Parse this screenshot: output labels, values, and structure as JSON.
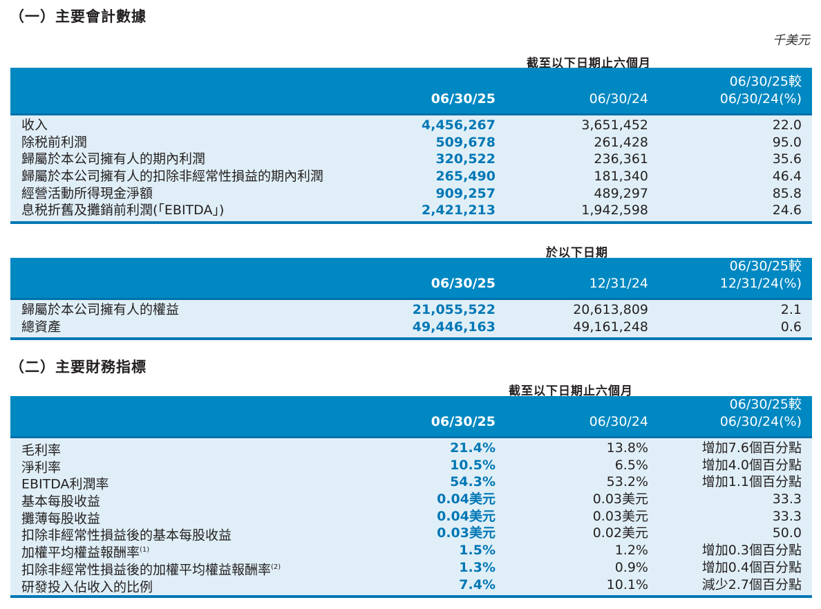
{
  "section1": {
    "title": "（一）主要會計數據",
    "unit": "千美元"
  },
  "table1": {
    "caption": "截至以下日期止六個月",
    "headers": [
      "06/30/25",
      "06/30/24",
      "06/30/25較",
      "06/30/24(%)"
    ],
    "rows": [
      [
        "收入",
        "4,456,267",
        "3,651,452",
        "22.0"
      ],
      [
        "除税前利潤",
        "509,678",
        "261,428",
        "95.0"
      ],
      [
        "歸屬於本公司擁有人的期內利潤",
        "320,522",
        "236,361",
        "35.6"
      ],
      [
        "歸屬於本公司擁有人的扣除非經常性損益的期內利潤",
        "265,490",
        "181,340",
        "46.4"
      ],
      [
        "經營活動所得現金淨額",
        "909,257",
        "489,297",
        "85.8"
      ],
      [
        "息税折舊及攤銷前利潤(「EBITDA」)",
        "2,421,213",
        "1,942,598",
        "24.6"
      ]
    ]
  },
  "table2": {
    "caption": "於以下日期",
    "headers": [
      "06/30/25",
      "12/31/24",
      "06/30/25較",
      "12/31/24(%)"
    ],
    "rows": [
      [
        "歸屬於本公司擁有人的權益",
        "21,055,522",
        "20,613,809",
        "2.1"
      ],
      [
        "總資產",
        "49,446,163",
        "49,161,248",
        "0.6"
      ]
    ]
  },
  "section2": {
    "title": "（二）主要財務指標"
  },
  "table3": {
    "caption": "截至以下日期止六個月",
    "headers": [
      "06/30/25",
      "06/30/24",
      "06/30/25較",
      "06/30/24(%)"
    ],
    "rows": [
      [
        "毛利率",
        "",
        "21.4%",
        "13.8%",
        "增加7.6個百分點"
      ],
      [
        "淨利率",
        "",
        "10.5%",
        "6.5%",
        "增加4.0個百分點"
      ],
      [
        "EBITDA利潤率",
        "",
        "54.3%",
        "53.2%",
        "增加1.1個百分點"
      ],
      [
        "基本每股收益",
        "",
        "0.04美元",
        "0.03美元",
        "33.3"
      ],
      [
        "攤薄每股收益",
        "",
        "0.04美元",
        "0.03美元",
        "33.3"
      ],
      [
        "扣除非經常性損益後的基本每股收益",
        "",
        "0.03美元",
        "0.02美元",
        "50.0"
      ],
      [
        "加權平均權益報酬率",
        "(1)",
        "1.5%",
        "1.2%",
        "增加0.3個百分點"
      ],
      [
        "扣除非經常性損益後的加權平均權益報酬率",
        "(2)",
        "1.3%",
        "0.9%",
        "增加0.4個百分點"
      ],
      [
        "研發投入佔收入的比例",
        "",
        "7.4%",
        "10.1%",
        "減少2.7個百分點"
      ]
    ]
  },
  "colors": {
    "header": "#0088c2",
    "body": "#e0eff7",
    "accent": "#0077b5"
  }
}
